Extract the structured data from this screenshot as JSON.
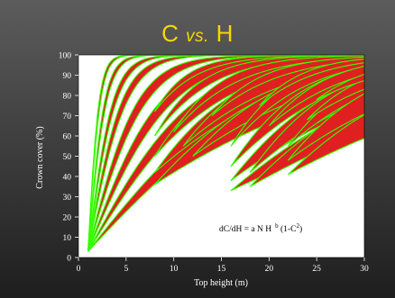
{
  "slide": {
    "title_main_c": "C",
    "title_vs": "vs.",
    "title_main_h": "H",
    "title_color": "#f5d800",
    "background_top": "#5c5c5c",
    "background_bottom": "#1e1e1e"
  },
  "chart_data": {
    "type": "line",
    "title": "C vs. H",
    "xlabel": "Top height (m)",
    "ylabel": "Crown cover (%)",
    "xlim": [
      0,
      30
    ],
    "ylim": [
      0,
      100
    ],
    "xticks": [
      0,
      5,
      10,
      15,
      20,
      25,
      30
    ],
    "yticks": [
      0,
      10,
      20,
      30,
      40,
      50,
      60,
      70,
      80,
      90,
      100
    ],
    "grid": false,
    "plot_background": "#ffffff",
    "fill_color": "#e02020",
    "line_color": "#33ff00",
    "annotation": {
      "text_main": "dC/dH = a N H",
      "text_sup1": "b",
      "text_mid": " (1-C",
      "text_sup2": "2",
      "text_end": ")"
    },
    "bands": [
      {
        "start": [
          1,
          3
        ],
        "k": [
          0.75,
          0.85
        ]
      },
      {
        "start": [
          1,
          3
        ],
        "k": [
          0.5,
          0.57
        ]
      },
      {
        "start": [
          1,
          3
        ],
        "k": [
          0.33,
          0.38
        ]
      },
      {
        "start": [
          1,
          3
        ],
        "k": [
          0.24,
          0.28
        ]
      },
      {
        "start": [
          1,
          3
        ],
        "k": [
          0.16,
          0.19
        ]
      },
      {
        "start": [
          1,
          3
        ],
        "k": [
          0.11,
          0.13
        ]
      },
      {
        "start": [
          1,
          3
        ],
        "k": [
          0.075,
          0.088
        ]
      },
      {
        "start": [
          1,
          3
        ],
        "k": [
          0.05,
          0.06
        ]
      },
      {
        "start": [
          8,
          72
        ],
        "k": [
          0.13,
          0.17
        ]
      },
      {
        "start": [
          8,
          60
        ],
        "k": [
          0.1,
          0.13
        ]
      },
      {
        "start": [
          8,
          50
        ],
        "k": [
          0.07,
          0.1
        ]
      },
      {
        "start": [
          8,
          42
        ],
        "k": [
          0.05,
          0.08
        ]
      },
      {
        "start": [
          8,
          36
        ],
        "k": [
          0.035,
          0.06
        ]
      },
      {
        "start": [
          10,
          62
        ],
        "k": [
          0.09,
          0.12
        ]
      },
      {
        "start": [
          11,
          55
        ],
        "k": [
          0.06,
          0.09
        ]
      },
      {
        "start": [
          12,
          50
        ],
        "k": [
          0.045,
          0.07
        ]
      },
      {
        "start": [
          14,
          70
        ],
        "k": [
          0.08,
          0.11
        ]
      },
      {
        "start": [
          16,
          55
        ],
        "k": [
          0.08,
          0.11
        ]
      },
      {
        "start": [
          16,
          45
        ],
        "k": [
          0.06,
          0.09
        ]
      },
      {
        "start": [
          16,
          38
        ],
        "k": [
          0.04,
          0.07
        ]
      },
      {
        "start": [
          16,
          33
        ],
        "k": [
          0.025,
          0.045
        ]
      },
      {
        "start": [
          18,
          42
        ],
        "k": [
          0.05,
          0.08
        ]
      },
      {
        "start": [
          18,
          35
        ],
        "k": [
          0.03,
          0.055
        ]
      },
      {
        "start": [
          19,
          75
        ],
        "k": [
          0.09,
          0.12
        ]
      },
      {
        "start": [
          20,
          65
        ],
        "k": [
          0.07,
          0.1
        ]
      },
      {
        "start": [
          22,
          55
        ],
        "k": [
          0.06,
          0.09
        ]
      },
      {
        "start": [
          22,
          48
        ],
        "k": [
          0.045,
          0.075
        ]
      },
      {
        "start": [
          22,
          41
        ],
        "k": [
          0.03,
          0.055
        ]
      },
      {
        "start": [
          24,
          68
        ],
        "k": [
          0.06,
          0.09
        ]
      },
      {
        "start": [
          25,
          78
        ],
        "k": [
          0.06,
          0.09
        ]
      }
    ]
  }
}
